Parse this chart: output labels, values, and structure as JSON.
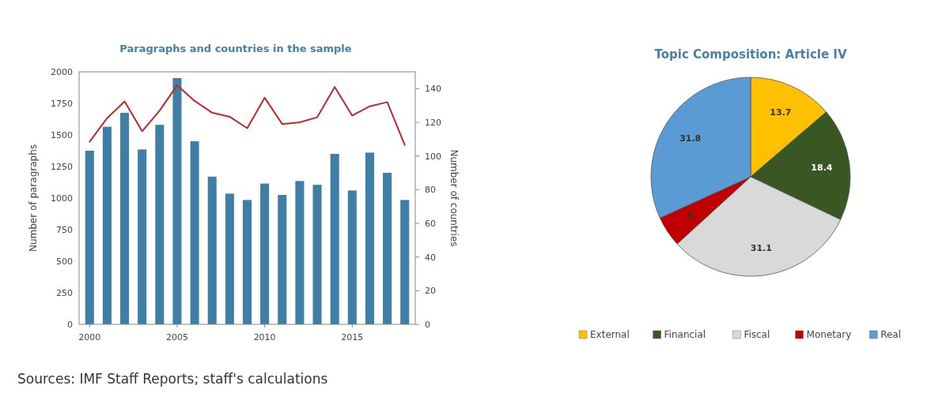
{
  "chart_data": [
    {
      "type": "bar",
      "title": "Paragraphs and countries in the sample",
      "ylabel": "Number of paragraphs",
      "y2label": "Number of countries",
      "x": [
        2000,
        2001,
        2002,
        2003,
        2004,
        2005,
        2006,
        2007,
        2008,
        2009,
        2010,
        2011,
        2012,
        2013,
        2014,
        2015,
        2016,
        2017,
        2018
      ],
      "series": [
        {
          "type": "bar",
          "color": "#3f7fa6",
          "values": [
            1375,
            1565,
            1675,
            1385,
            1580,
            1950,
            1450,
            1170,
            1035,
            985,
            1115,
            1025,
            1135,
            1105,
            1350,
            1060,
            1360,
            1200,
            985
          ]
        },
        {
          "type": "line",
          "axis": "y2",
          "color": "#c0272d",
          "values": [
            108.5,
            122.5,
            132.4,
            114.7,
            127,
            142,
            132.7,
            125.7,
            123.3,
            116.5,
            134.6,
            119,
            120,
            123,
            141,
            124,
            129.5,
            132,
            106.5
          ]
        }
      ],
      "xlim": [
        1999.4,
        2018.6
      ],
      "xticks": [
        2000,
        2005,
        2010,
        2015
      ],
      "ylim": [
        0,
        2000
      ],
      "yticks": [
        0,
        250,
        500,
        750,
        1000,
        1250,
        1500,
        1750,
        2000
      ],
      "y2lim": [
        0,
        150
      ],
      "y2ticks": [
        0,
        20,
        40,
        60,
        80,
        100,
        120,
        140
      ],
      "grid": false,
      "annotations": [
        "Sources: IMF Staff Reports; staff's calculations"
      ]
    },
    {
      "type": "pie",
      "title": "Topic Composition: Article IV",
      "categories": [
        "External",
        "Financial",
        "Fiscal",
        "Monetary",
        "Real"
      ],
      "values": [
        13.7,
        18.4,
        31.1,
        5,
        31.8
      ],
      "colors": [
        "#ffc000",
        "#385723",
        "#d9d9d9",
        "#c00000",
        "#5b9bd5"
      ],
      "data_labels": true,
      "legend": "bottom"
    }
  ]
}
